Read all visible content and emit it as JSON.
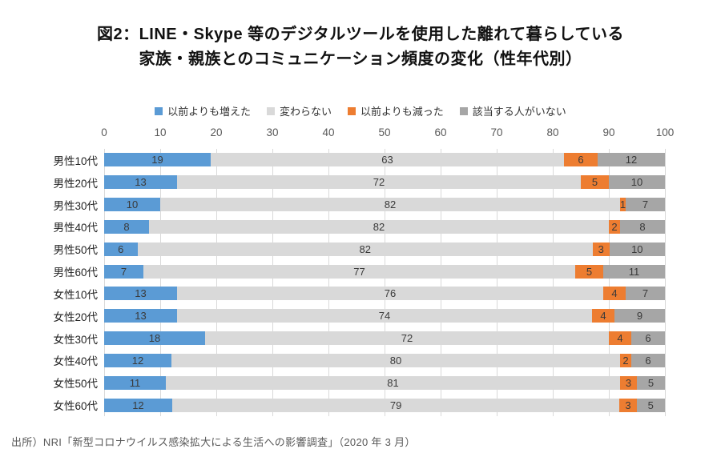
{
  "title": {
    "line1": "図2：LINE・Skype 等のデジタルツールを使用した離れて暮らしている",
    "line2": "家族・親族とのコミュニケーション頻度の変化（性年代別）"
  },
  "source": "出所）NRI「新型コロナウイルス感染拡大による生活への影響調査」（2020 年 3 月）",
  "colors": {
    "increased": "#5B9BD5",
    "unchanged": "#D9D9D9",
    "decreased": "#ED7D31",
    "not_applicable": "#A6A6A6",
    "gridline": "#D9D9D9",
    "axis_text": "#595959"
  },
  "chart_data": {
    "type": "bar",
    "orientation": "horizontal",
    "stacked": true,
    "title": "図2：LINE・Skype 等のデジタルツールを使用した離れて暮らしている家族・親族とのコミュニケーション頻度の変化（性年代別）",
    "categories": [
      "男性10代",
      "男性20代",
      "男性30代",
      "男性40代",
      "男性50代",
      "男性60代",
      "女性10代",
      "女性20代",
      "女性30代",
      "女性40代",
      "女性50代",
      "女性60代"
    ],
    "series": [
      {
        "name": "以前よりも増えた",
        "color": "#5B9BD5",
        "values": [
          19,
          13,
          10,
          8,
          6,
          7,
          13,
          13,
          18,
          12,
          11,
          12
        ]
      },
      {
        "name": "変わらない",
        "color": "#D9D9D9",
        "values": [
          63,
          72,
          82,
          82,
          82,
          77,
          76,
          74,
          72,
          80,
          81,
          79
        ]
      },
      {
        "name": "以前よりも減った",
        "color": "#ED7D31",
        "values": [
          6,
          5,
          1,
          2,
          3,
          5,
          4,
          4,
          4,
          2,
          3,
          3
        ]
      },
      {
        "name": "該当する人がいない",
        "color": "#A6A6A6",
        "values": [
          12,
          10,
          7,
          8,
          10,
          11,
          7,
          9,
          6,
          6,
          5,
          5
        ]
      }
    ],
    "x_ticks": [
      0,
      10,
      20,
      30,
      40,
      50,
      60,
      70,
      80,
      90,
      100
    ],
    "xlim": [
      0,
      100
    ],
    "grid": true,
    "legend_position": "top",
    "value_labels": true,
    "xlabel": "",
    "ylabel": ""
  }
}
